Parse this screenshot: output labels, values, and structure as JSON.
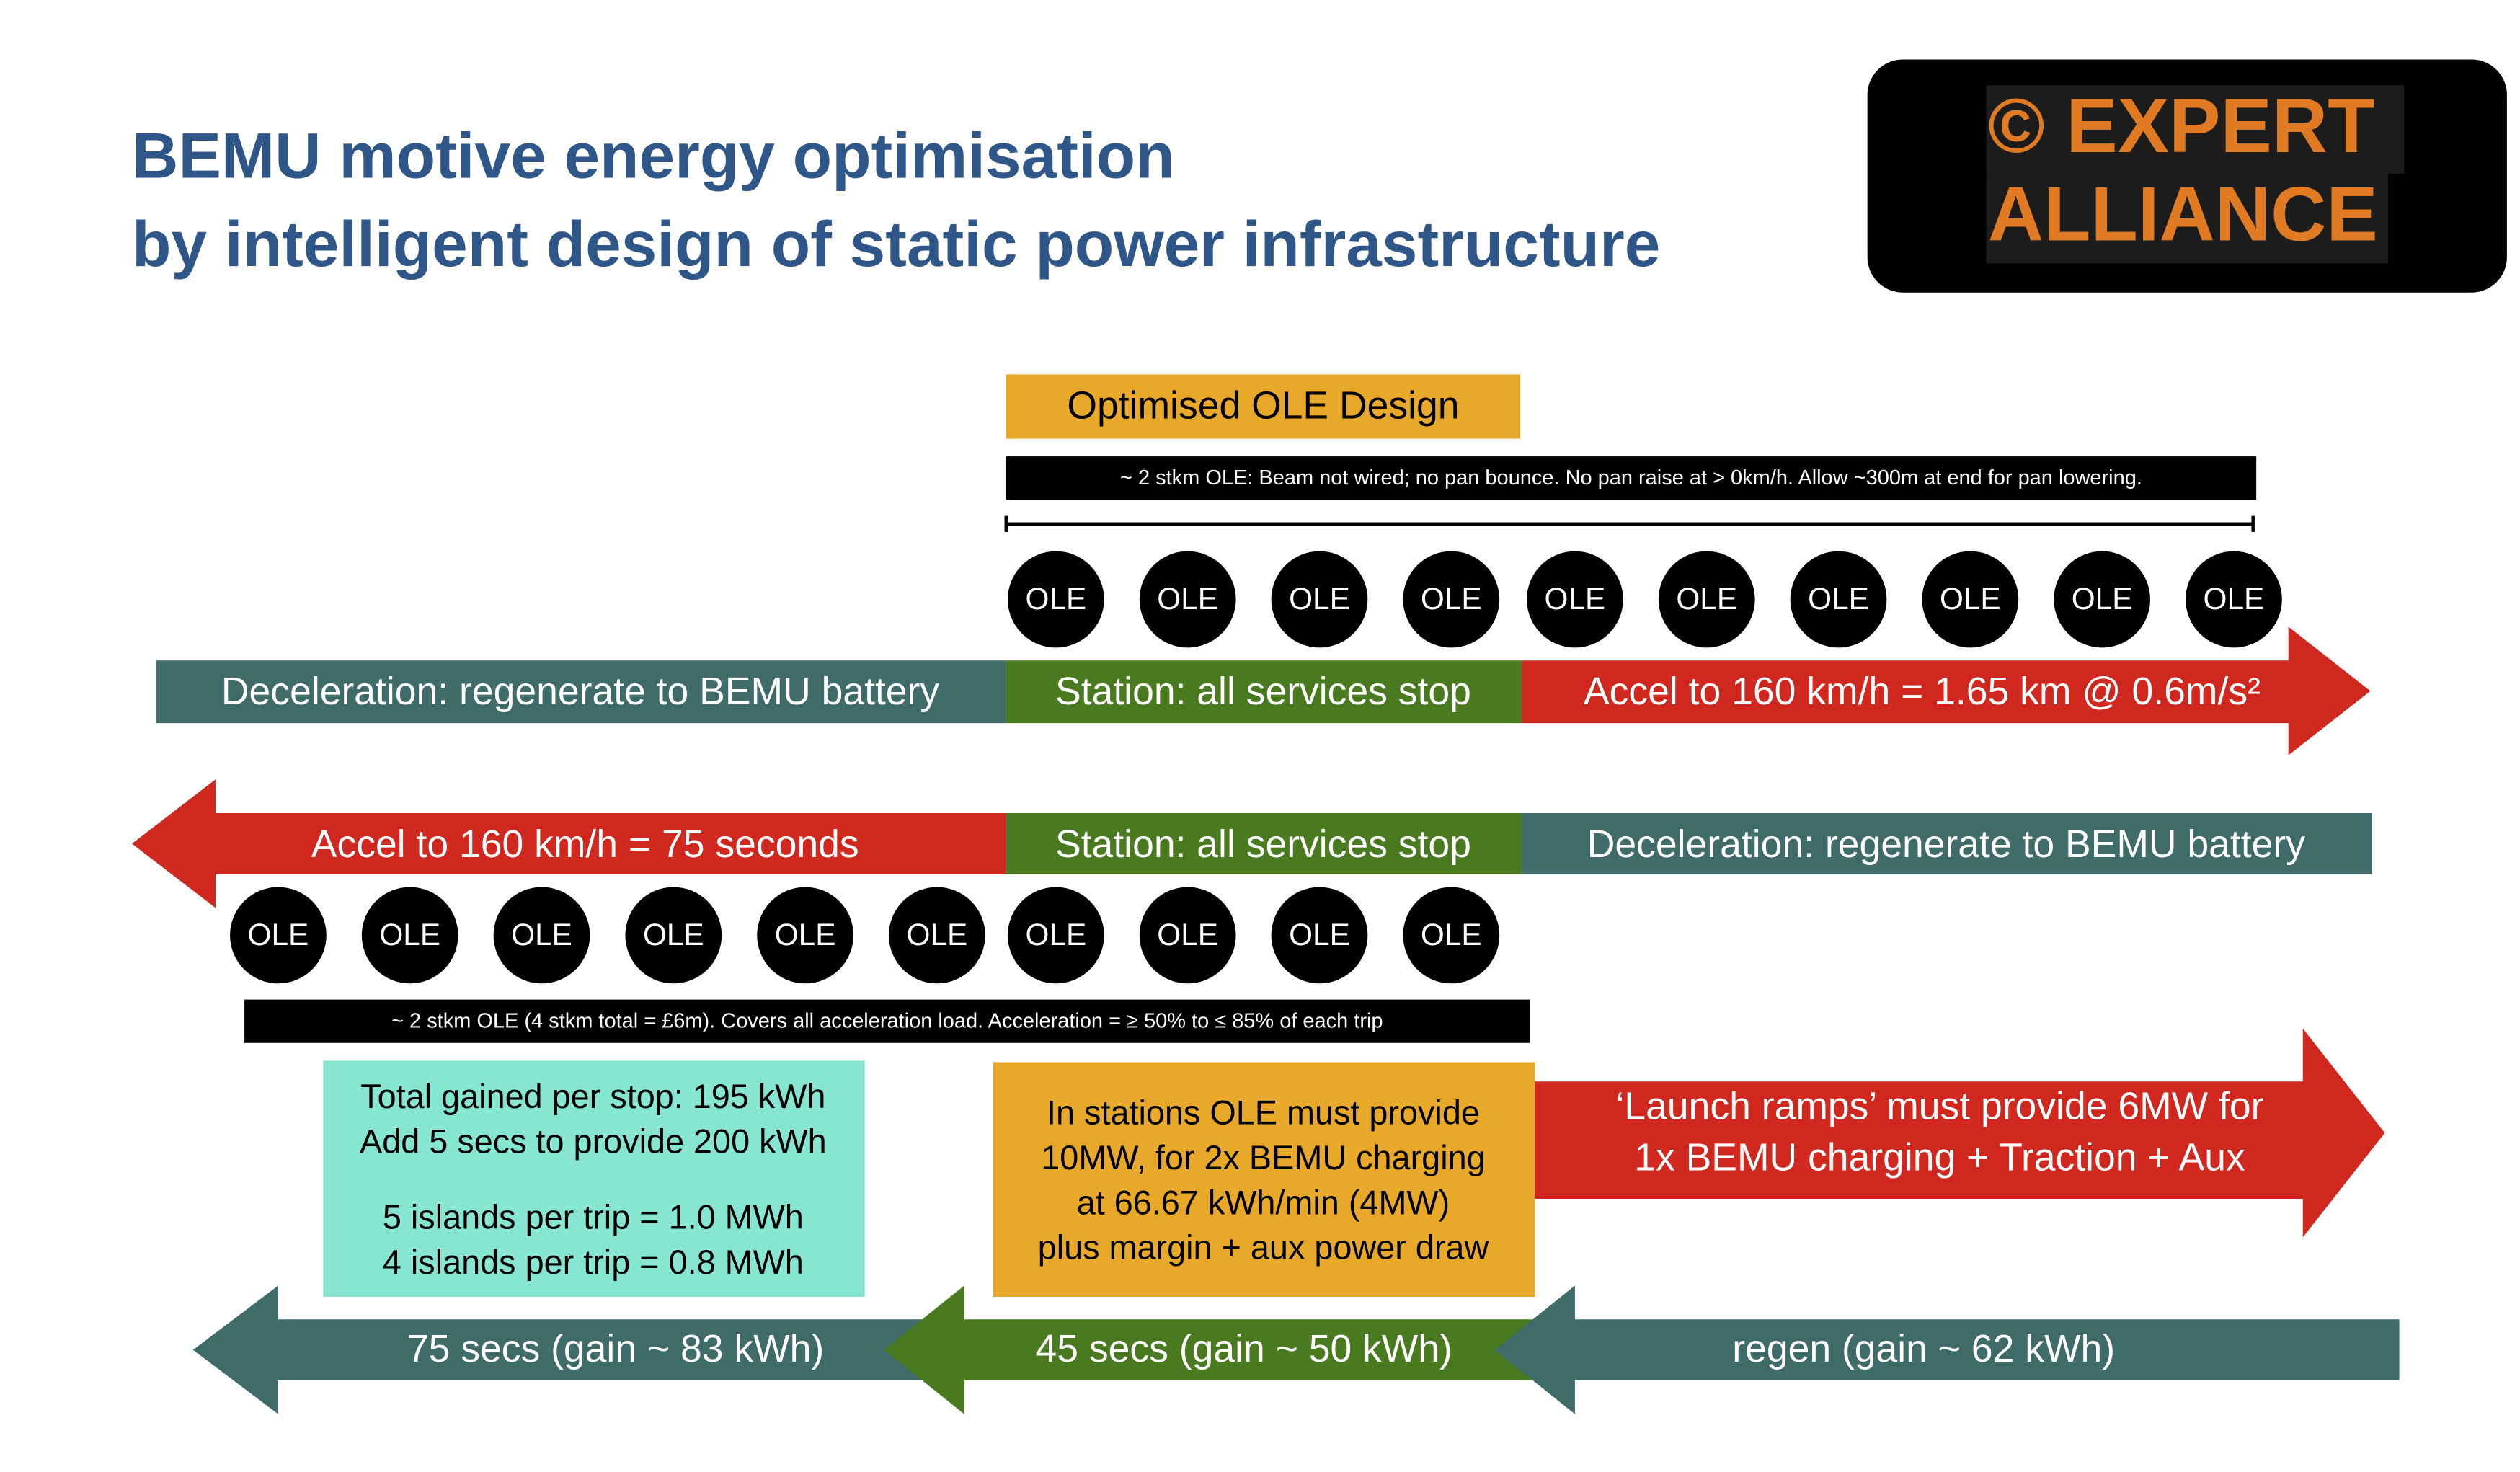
{
  "header": {
    "title_lines": [
      "BEMU motive energy optimisation",
      "by intelligent design of static power infrastructure"
    ]
  },
  "logo": {
    "lines": [
      "© EXPERT",
      "ALLIANCE"
    ]
  },
  "optimised": {
    "label": "Optimised OLE Design",
    "note": "~ 2 stkm OLE: Beam not wired; no pan bounce.  No pan raise at > 0km/h.  Allow ~300m at end for pan lowering."
  },
  "top_ole": [
    "OLE",
    "OLE",
    "OLE",
    "OLE",
    "OLE",
    "OLE",
    "OLE",
    "OLE",
    "OLE",
    "OLE"
  ],
  "row1": [
    "Deceleration: regenerate to BEMU battery",
    "Station: all services stop",
    "Accel to 160 km/h = 1.65 km @ 0.6m/s²"
  ],
  "row2": [
    "Accel to 160 km/h = 75 seconds",
    "Station: all services stop",
    "Deceleration: regenerate to BEMU battery"
  ],
  "bottom_ole": [
    "OLE",
    "OLE",
    "OLE",
    "OLE",
    "OLE",
    "OLE",
    "OLE",
    "OLE",
    "OLE",
    "OLE"
  ],
  "bottom_note": "~ 2 stkm OLE (4 stkm total = £6m).  Covers all acceleration load.  Acceleration = ≥ 50% to ≤ 85% of each trip",
  "gain_box": [
    "Total gained per stop: 195 kWh",
    "Add 5 secs to provide 200 kWh",
    "5 islands per trip = 1.0 MWh",
    "4 islands per trip = 0.8 MWh"
  ],
  "station_box": [
    "In stations OLE must provide",
    "10MW, for 2x BEMU charging",
    "at 66.67 kWh/min (4MW)",
    "plus margin + aux power draw"
  ],
  "launch_arrow": [
    "‘Launch ramps’ must provide 6MW for",
    "1x BEMU charging + Traction + Aux"
  ],
  "timeline": [
    "75 secs (gain ~ 83 kWh)",
    "45 secs (gain ~ 50 kWh)",
    "regen (gain ~ 62 kWh)"
  ]
}
